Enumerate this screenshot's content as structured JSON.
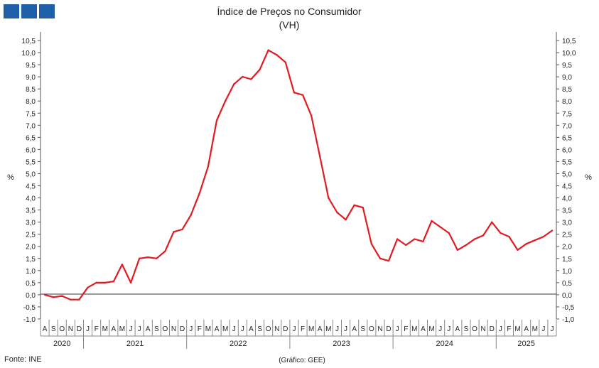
{
  "logo_color": "#1f5fa8",
  "chart_data": {
    "type": "line",
    "title": "Índice de Preços no Consumidor",
    "subtitle": "(VH)",
    "ylabel_left": "%",
    "ylabel_right": "%",
    "ylim": [
      -1.0,
      10.5
    ],
    "ytick_step": 0.5,
    "ytick_labels": [
      "-1,0",
      "-0,5",
      "0,0",
      "0,5",
      "1,0",
      "1,5",
      "2,0",
      "2,5",
      "3,0",
      "3,5",
      "4,0",
      "4,5",
      "5,0",
      "5,5",
      "6,0",
      "6,5",
      "7,0",
      "7,5",
      "8,0",
      "8,5",
      "9,0",
      "9,5",
      "10,0",
      "10,5"
    ],
    "grid": false,
    "line_color": "#e11b22",
    "month_labels": [
      "A",
      "S",
      "O",
      "N",
      "D",
      "J",
      "F",
      "M",
      "A",
      "M",
      "J",
      "J",
      "A",
      "S",
      "O",
      "N",
      "D",
      "J",
      "F",
      "M",
      "A",
      "M",
      "J",
      "J",
      "A",
      "S",
      "O",
      "N",
      "D",
      "J",
      "F",
      "M",
      "A",
      "M",
      "J",
      "J",
      "A",
      "S",
      "O",
      "N",
      "D",
      "J",
      "F",
      "M",
      "A",
      "M",
      "J",
      "J",
      "A",
      "S",
      "O",
      "N",
      "D",
      "J",
      "F",
      "M",
      "A",
      "M",
      "J",
      "J"
    ],
    "year_labels": [
      "2020",
      "2021",
      "2022",
      "2023",
      "2024",
      "2025"
    ],
    "year_month_counts": [
      5,
      12,
      12,
      12,
      12,
      7
    ],
    "series": [
      {
        "values": [
          0.0,
          -0.1,
          -0.05,
          -0.2,
          -0.2,
          0.3,
          0.5,
          0.5,
          0.55,
          1.25,
          0.5,
          1.5,
          1.55,
          1.5,
          1.8,
          2.6,
          2.7,
          3.3,
          4.2,
          5.3,
          7.2,
          8.0,
          8.7,
          9.0,
          8.9,
          9.3,
          10.1,
          9.9,
          9.6,
          8.35,
          8.25,
          7.4,
          5.7,
          4.0,
          3.4,
          3.1,
          3.7,
          3.6,
          2.1,
          1.5,
          1.4,
          2.3,
          2.05,
          2.3,
          2.2,
          3.05,
          2.8,
          2.55,
          1.85,
          2.05,
          2.3,
          2.45,
          3.0,
          2.55,
          2.4,
          1.85,
          2.1,
          2.25,
          2.4,
          2.65
        ]
      }
    ]
  },
  "footer": {
    "source": "Fonte: INE",
    "credit": "(Gráfico: GEE)"
  }
}
